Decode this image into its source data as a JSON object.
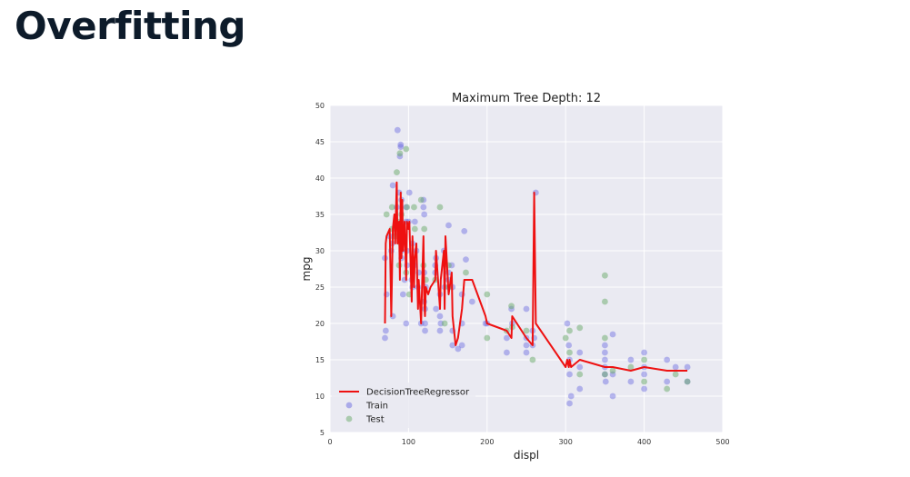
{
  "page": {
    "title": "Overfitting"
  },
  "chart_data": {
    "type": "scatter",
    "title": "Maximum Tree Depth: 12",
    "xlabel": "displ",
    "ylabel": "mpg",
    "xlim": [
      0,
      500
    ],
    "ylim": [
      5,
      50
    ],
    "xticks": [
      0,
      100,
      200,
      300,
      400,
      500
    ],
    "yticks": [
      5,
      10,
      15,
      20,
      25,
      30,
      35,
      40,
      45,
      50
    ],
    "grid": true,
    "legend_position": "lower-left",
    "colors": {
      "background": "#eaeaf2",
      "grid": "#ffffff",
      "train": "#6a6ae0",
      "test": "#6aaa6a",
      "line": "#ee1111"
    },
    "series": [
      {
        "name": "Train",
        "kind": "scatter",
        "points": [
          [
            70,
            29
          ],
          [
            71,
            19
          ],
          [
            70,
            18
          ],
          [
            72,
            24
          ],
          [
            76,
            32
          ],
          [
            78,
            30
          ],
          [
            79,
            31
          ],
          [
            80,
            39
          ],
          [
            80,
            21
          ],
          [
            85,
            36
          ],
          [
            86,
            46.6
          ],
          [
            88,
            38
          ],
          [
            89,
            43
          ],
          [
            90,
            44.6
          ],
          [
            90,
            44.3
          ],
          [
            91,
            37
          ],
          [
            91,
            30
          ],
          [
            91,
            29
          ],
          [
            92,
            32
          ],
          [
            93,
            24
          ],
          [
            95,
            26
          ],
          [
            97,
            36
          ],
          [
            97,
            34
          ],
          [
            97,
            20
          ],
          [
            98,
            30
          ],
          [
            98,
            28
          ],
          [
            100,
            34
          ],
          [
            101,
            38
          ],
          [
            104,
            26
          ],
          [
            105,
            25
          ],
          [
            105,
            31
          ],
          [
            107,
            28
          ],
          [
            108,
            34
          ],
          [
            110,
            30
          ],
          [
            112,
            25
          ],
          [
            113,
            27
          ],
          [
            116,
            20
          ],
          [
            119,
            37
          ],
          [
            119,
            36
          ],
          [
            120,
            35
          ],
          [
            120,
            27
          ],
          [
            120,
            23
          ],
          [
            121,
            22
          ],
          [
            121,
            20
          ],
          [
            121,
            19
          ],
          [
            122,
            25
          ],
          [
            134,
            28
          ],
          [
            134,
            27
          ],
          [
            135,
            29
          ],
          [
            135,
            22
          ],
          [
            140,
            24
          ],
          [
            140,
            21
          ],
          [
            140,
            19
          ],
          [
            141,
            20
          ],
          [
            145,
            30
          ],
          [
            146,
            25
          ],
          [
            151,
            33.5
          ],
          [
            151,
            27
          ],
          [
            151,
            26
          ],
          [
            155,
            28
          ],
          [
            156,
            25
          ],
          [
            156,
            19
          ],
          [
            156,
            17
          ],
          [
            163,
            16.5
          ],
          [
            168,
            17
          ],
          [
            168,
            20
          ],
          [
            168,
            24
          ],
          [
            171,
            32.7
          ],
          [
            173,
            28.8
          ],
          [
            181,
            23
          ],
          [
            198,
            20
          ],
          [
            200,
            20
          ],
          [
            225,
            16
          ],
          [
            225,
            18
          ],
          [
            231,
            22
          ],
          [
            232,
            20
          ],
          [
            250,
            17
          ],
          [
            250,
            18
          ],
          [
            250,
            16
          ],
          [
            250,
            22
          ],
          [
            258,
            17
          ],
          [
            258,
            19
          ],
          [
            260,
            18
          ],
          [
            262,
            38
          ],
          [
            302,
            20
          ],
          [
            304,
            17
          ],
          [
            305,
            15
          ],
          [
            305,
            13
          ],
          [
            305,
            9
          ],
          [
            307,
            10
          ],
          [
            318,
            14
          ],
          [
            318,
            16
          ],
          [
            318,
            11
          ],
          [
            350,
            16
          ],
          [
            350,
            13
          ],
          [
            350,
            14
          ],
          [
            350,
            15
          ],
          [
            350,
            17
          ],
          [
            351,
            12
          ],
          [
            360,
            13
          ],
          [
            360,
            10
          ],
          [
            360,
            18.5
          ],
          [
            383,
            15
          ],
          [
            383,
            12
          ],
          [
            400,
            16
          ],
          [
            400,
            14
          ],
          [
            400,
            13
          ],
          [
            400,
            11
          ],
          [
            429,
            15
          ],
          [
            429,
            12
          ],
          [
            440,
            14
          ],
          [
            455,
            14
          ],
          [
            455,
            12
          ]
        ]
      },
      {
        "name": "Test",
        "kind": "scatter",
        "points": [
          [
            72,
            35
          ],
          [
            79,
            33
          ],
          [
            79,
            36
          ],
          [
            83,
            32
          ],
          [
            85,
            40.8
          ],
          [
            86,
            34
          ],
          [
            88,
            28
          ],
          [
            89,
            43.4
          ],
          [
            90,
            31
          ],
          [
            91,
            35
          ],
          [
            97,
            44
          ],
          [
            97,
            27
          ],
          [
            98,
            36
          ],
          [
            101,
            24
          ],
          [
            107,
            36
          ],
          [
            108,
            33
          ],
          [
            116,
            37
          ],
          [
            119,
            28
          ],
          [
            120,
            33
          ],
          [
            122,
            26
          ],
          [
            134,
            26
          ],
          [
            140,
            36
          ],
          [
            146,
            20
          ],
          [
            151,
            28
          ],
          [
            151,
            25
          ],
          [
            173,
            27
          ],
          [
            200,
            24
          ],
          [
            200,
            18
          ],
          [
            225,
            19
          ],
          [
            231,
            22.4
          ],
          [
            232,
            19.5
          ],
          [
            250,
            19
          ],
          [
            258,
            15
          ],
          [
            300,
            18
          ],
          [
            305,
            16
          ],
          [
            305,
            19
          ],
          [
            318,
            19.4
          ],
          [
            318,
            13
          ],
          [
            350,
            26.6
          ],
          [
            350,
            23
          ],
          [
            350,
            18
          ],
          [
            350,
            13
          ],
          [
            360,
            13.5
          ],
          [
            383,
            14
          ],
          [
            400,
            15
          ],
          [
            400,
            12
          ],
          [
            429,
            11
          ],
          [
            440,
            13
          ],
          [
            455,
            12
          ]
        ]
      },
      {
        "name": "DecisionTreeRegressor",
        "kind": "line",
        "points": [
          [
            70,
            20
          ],
          [
            71,
            31
          ],
          [
            72,
            32
          ],
          [
            76,
            33
          ],
          [
            78,
            21
          ],
          [
            80,
            33
          ],
          [
            82,
            35
          ],
          [
            83,
            31
          ],
          [
            85,
            39.4
          ],
          [
            86,
            31
          ],
          [
            88,
            34
          ],
          [
            89,
            26
          ],
          [
            90,
            38
          ],
          [
            91,
            29
          ],
          [
            92,
            37
          ],
          [
            93,
            30
          ],
          [
            95,
            34
          ],
          [
            97,
            26
          ],
          [
            98,
            34
          ],
          [
            100,
            33
          ],
          [
            101,
            34
          ],
          [
            104,
            23
          ],
          [
            105,
            32
          ],
          [
            107,
            25
          ],
          [
            108,
            29
          ],
          [
            110,
            31
          ],
          [
            112,
            22
          ],
          [
            113,
            26
          ],
          [
            116,
            20
          ],
          [
            119,
            32
          ],
          [
            120,
            23
          ],
          [
            121,
            21
          ],
          [
            122,
            25
          ],
          [
            125,
            24
          ],
          [
            128,
            25
          ],
          [
            134,
            26
          ],
          [
            135,
            30
          ],
          [
            140,
            22
          ],
          [
            141,
            26
          ],
          [
            145,
            30
          ],
          [
            146,
            22
          ],
          [
            147,
            32
          ],
          [
            151,
            24
          ],
          [
            155,
            27
          ],
          [
            156,
            21
          ],
          [
            160,
            17
          ],
          [
            163,
            18
          ],
          [
            168,
            22
          ],
          [
            171,
            26
          ],
          [
            181,
            26
          ],
          [
            198,
            21
          ],
          [
            200,
            20
          ],
          [
            225,
            19
          ],
          [
            231,
            18
          ],
          [
            232,
            21
          ],
          [
            250,
            18
          ],
          [
            258,
            17
          ],
          [
            260,
            38
          ],
          [
            262,
            20
          ],
          [
            300,
            14
          ],
          [
            302,
            15
          ],
          [
            304,
            14
          ],
          [
            305,
            15
          ],
          [
            307,
            14
          ],
          [
            318,
            15
          ],
          [
            350,
            14
          ],
          [
            360,
            14
          ],
          [
            383,
            13.5
          ],
          [
            400,
            14
          ],
          [
            429,
            13.5
          ],
          [
            440,
            13.5
          ],
          [
            455,
            13.5
          ]
        ]
      }
    ]
  }
}
